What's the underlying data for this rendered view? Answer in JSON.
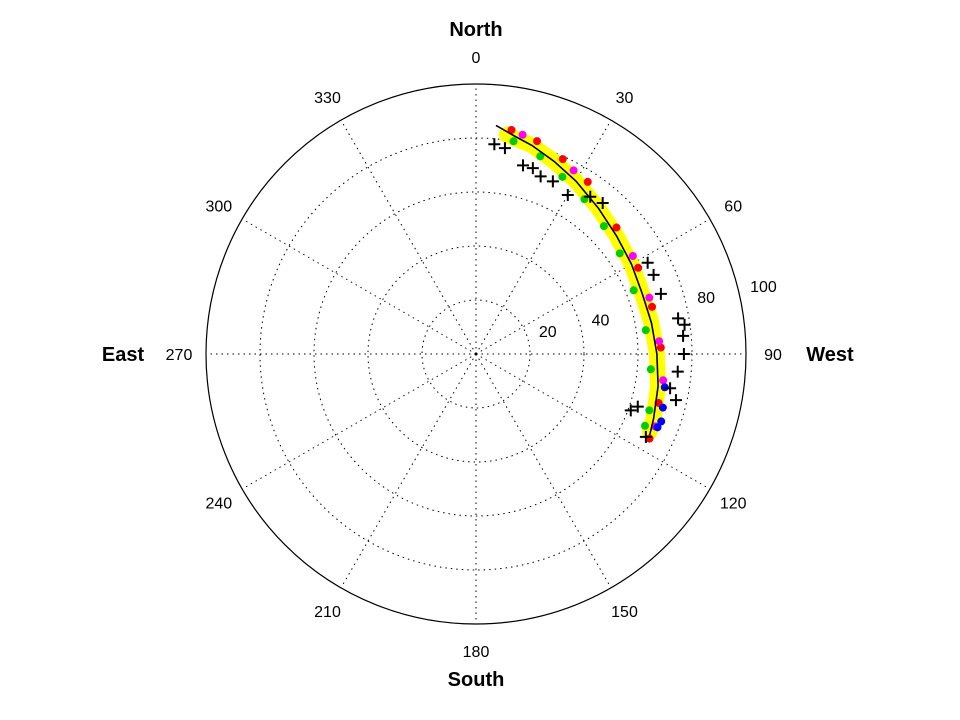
{
  "chart_data": {
    "type": "polar-scatter",
    "title": "",
    "angle_units": "degrees",
    "angle_zero": "top",
    "angle_direction": "clockwise",
    "radial_range": [
      0,
      100
    ],
    "radial_rings": [
      20,
      40,
      60,
      80,
      100
    ],
    "radial_tick_labels": [
      "20",
      "40",
      "80",
      "100"
    ],
    "angular_ticks": [
      0,
      30,
      60,
      90,
      120,
      150,
      180,
      210,
      240,
      270,
      300,
      330
    ],
    "angular_tick_labels": [
      "0",
      "30",
      "60",
      "90",
      "120",
      "150",
      "180",
      "210",
      "240",
      "270",
      "300",
      "330"
    ],
    "direction_labels": {
      "north": "North",
      "west": "West",
      "south": "South",
      "east": "East"
    },
    "grid": true,
    "series": [
      {
        "marker": "line",
        "color": "#000000",
        "points": [
          {
            "theta": 5,
            "r": 85
          },
          {
            "theta": 10,
            "r": 82
          },
          {
            "theta": 15,
            "r": 80
          },
          {
            "theta": 22,
            "r": 77
          },
          {
            "theta": 30,
            "r": 74
          },
          {
            "theta": 40,
            "r": 70.5
          },
          {
            "theta": 50,
            "r": 68
          },
          {
            "theta": 60,
            "r": 66.5
          },
          {
            "theta": 70,
            "r": 65.5
          },
          {
            "theta": 80,
            "r": 66
          },
          {
            "theta": 90,
            "r": 67
          },
          {
            "theta": 100,
            "r": 68.5
          },
          {
            "theta": 110,
            "r": 70
          },
          {
            "theta": 115,
            "r": 71
          }
        ]
      },
      {
        "marker": "band",
        "color": "#ffff00",
        "points": [
          {
            "theta": 8,
            "r": 82
          },
          {
            "theta": 15,
            "r": 80
          },
          {
            "theta": 22,
            "r": 77
          },
          {
            "theta": 30,
            "r": 74
          },
          {
            "theta": 40,
            "r": 70.5
          },
          {
            "theta": 50,
            "r": 68
          },
          {
            "theta": 60,
            "r": 66.5
          },
          {
            "theta": 70,
            "r": 65.5
          },
          {
            "theta": 80,
            "r": 66
          },
          {
            "theta": 90,
            "r": 67
          },
          {
            "theta": 100,
            "r": 68.5
          },
          {
            "theta": 110,
            "r": 70
          },
          {
            "theta": 114,
            "r": 70.5
          }
        ]
      },
      {
        "marker": "dot",
        "color": "#00cc00",
        "points": [
          {
            "theta": 10,
            "r": 80
          },
          {
            "theta": 18,
            "r": 77
          },
          {
            "theta": 26,
            "r": 73
          },
          {
            "theta": 35,
            "r": 70
          },
          {
            "theta": 45,
            "r": 67
          },
          {
            "theta": 55,
            "r": 65
          },
          {
            "theta": 68,
            "r": 63
          },
          {
            "theta": 82,
            "r": 63.5
          },
          {
            "theta": 95,
            "r": 65
          },
          {
            "theta": 108,
            "r": 67.5
          },
          {
            "theta": 113,
            "r": 68
          }
        ]
      },
      {
        "marker": "dot",
        "color": "#ff0000",
        "points": [
          {
            "theta": 9,
            "r": 84
          },
          {
            "theta": 16,
            "r": 82
          },
          {
            "theta": 24,
            "r": 79
          },
          {
            "theta": 33,
            "r": 76
          },
          {
            "theta": 48,
            "r": 70
          },
          {
            "theta": 62,
            "r": 68
          },
          {
            "theta": 75,
            "r": 67.5
          },
          {
            "theta": 88,
            "r": 68.5
          },
          {
            "theta": 105,
            "r": 70
          },
          {
            "theta": 116,
            "r": 71.5
          }
        ]
      },
      {
        "marker": "dot",
        "color": "#ff00ff",
        "points": [
          {
            "theta": 12,
            "r": 83
          },
          {
            "theta": 28,
            "r": 77
          },
          {
            "theta": 58,
            "r": 68.5
          },
          {
            "theta": 72,
            "r": 67.5
          },
          {
            "theta": 86,
            "r": 68
          },
          {
            "theta": 98,
            "r": 70
          },
          {
            "theta": 112,
            "r": 71.5
          }
        ]
      },
      {
        "marker": "dot",
        "color": "#0000ff",
        "points": [
          {
            "theta": 100,
            "r": 71
          },
          {
            "theta": 106,
            "r": 72
          },
          {
            "theta": 112,
            "r": 72.5
          },
          {
            "theta": 110,
            "r": 73
          }
        ]
      },
      {
        "marker": "plus",
        "color": "#000000",
        "points": [
          {
            "theta": 5,
            "r": 78
          },
          {
            "theta": 8,
            "r": 77
          },
          {
            "theta": 14,
            "r": 72
          },
          {
            "theta": 17,
            "r": 72
          },
          {
            "theta": 20,
            "r": 70
          },
          {
            "theta": 24,
            "r": 70
          },
          {
            "theta": 30,
            "r": 68
          },
          {
            "theta": 36,
            "r": 72
          },
          {
            "theta": 40,
            "r": 73
          },
          {
            "theta": 62,
            "r": 72
          },
          {
            "theta": 66,
            "r": 72
          },
          {
            "theta": 72,
            "r": 72
          },
          {
            "theta": 80,
            "r": 76
          },
          {
            "theta": 82,
            "r": 78
          },
          {
            "theta": 85,
            "r": 77
          },
          {
            "theta": 90,
            "r": 77
          },
          {
            "theta": 95,
            "r": 75
          },
          {
            "theta": 100,
            "r": 73
          },
          {
            "theta": 103,
            "r": 76
          },
          {
            "theta": 110,
            "r": 61
          },
          {
            "theta": 108,
            "r": 63
          },
          {
            "theta": 116,
            "r": 70
          }
        ]
      }
    ]
  }
}
